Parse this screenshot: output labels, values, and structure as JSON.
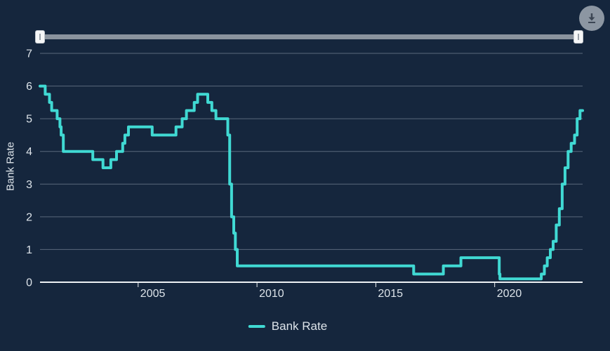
{
  "colors": {
    "background": "#15263D",
    "line": "#40D9D3",
    "grid": "#5A697D",
    "axis": "#EDF1F4",
    "text": "#DCE3E9",
    "slider_track": "#8A939E",
    "slider_handle": "#F5F6F7",
    "export_button": "#8C96A2",
    "export_icon": "#3C4654"
  },
  "toolbar": {
    "export_icon": "download-icon"
  },
  "slider": {
    "type": "range",
    "handles": [
      "min",
      "max"
    ]
  },
  "chart_data": {
    "type": "line",
    "step": "after",
    "title": "",
    "xlabel": "",
    "ylabel": "Bank Rate",
    "xlim": [
      2000.87,
      2023.7
    ],
    "ylim": [
      0,
      7
    ],
    "xticks": [
      2005,
      2010,
      2015,
      2020
    ],
    "yticks": [
      0,
      1,
      2,
      3,
      4,
      5,
      6,
      7
    ],
    "grid": true,
    "legend_position": "bottom",
    "series": [
      {
        "name": "Bank Rate",
        "color": "#40D9D3",
        "points": [
          [
            2000.87,
            6
          ],
          [
            2001.09,
            5.75
          ],
          [
            2001.27,
            5.5
          ],
          [
            2001.36,
            5.25
          ],
          [
            2001.59,
            5
          ],
          [
            2001.71,
            4.75
          ],
          [
            2001.76,
            4.5
          ],
          [
            2001.85,
            4
          ],
          [
            2003.09,
            3.75
          ],
          [
            2003.52,
            3.5
          ],
          [
            2003.85,
            3.75
          ],
          [
            2004.09,
            4
          ],
          [
            2004.35,
            4.25
          ],
          [
            2004.44,
            4.5
          ],
          [
            2004.59,
            4.75
          ],
          [
            2005.59,
            4.5
          ],
          [
            2006.59,
            4.75
          ],
          [
            2006.85,
            5
          ],
          [
            2007.03,
            5.25
          ],
          [
            2007.36,
            5.5
          ],
          [
            2007.5,
            5.75
          ],
          [
            2007.93,
            5.5
          ],
          [
            2008.1,
            5.25
          ],
          [
            2008.27,
            5
          ],
          [
            2008.77,
            4.5
          ],
          [
            2008.85,
            3
          ],
          [
            2008.93,
            2
          ],
          [
            2009.02,
            1.5
          ],
          [
            2009.09,
            1
          ],
          [
            2009.17,
            0.5
          ],
          [
            2016.59,
            0.25
          ],
          [
            2017.84,
            0.5
          ],
          [
            2018.58,
            0.75
          ],
          [
            2020.19,
            0.25
          ],
          [
            2020.22,
            0.1
          ],
          [
            2021.96,
            0.25
          ],
          [
            2022.09,
            0.5
          ],
          [
            2022.21,
            0.75
          ],
          [
            2022.34,
            1
          ],
          [
            2022.46,
            1.25
          ],
          [
            2022.59,
            1.75
          ],
          [
            2022.72,
            2.25
          ],
          [
            2022.84,
            3
          ],
          [
            2022.96,
            3.5
          ],
          [
            2023.09,
            4
          ],
          [
            2023.22,
            4.25
          ],
          [
            2023.36,
            4.5
          ],
          [
            2023.47,
            5
          ],
          [
            2023.59,
            5.25
          ],
          [
            2023.7,
            5.25
          ]
        ]
      }
    ]
  }
}
